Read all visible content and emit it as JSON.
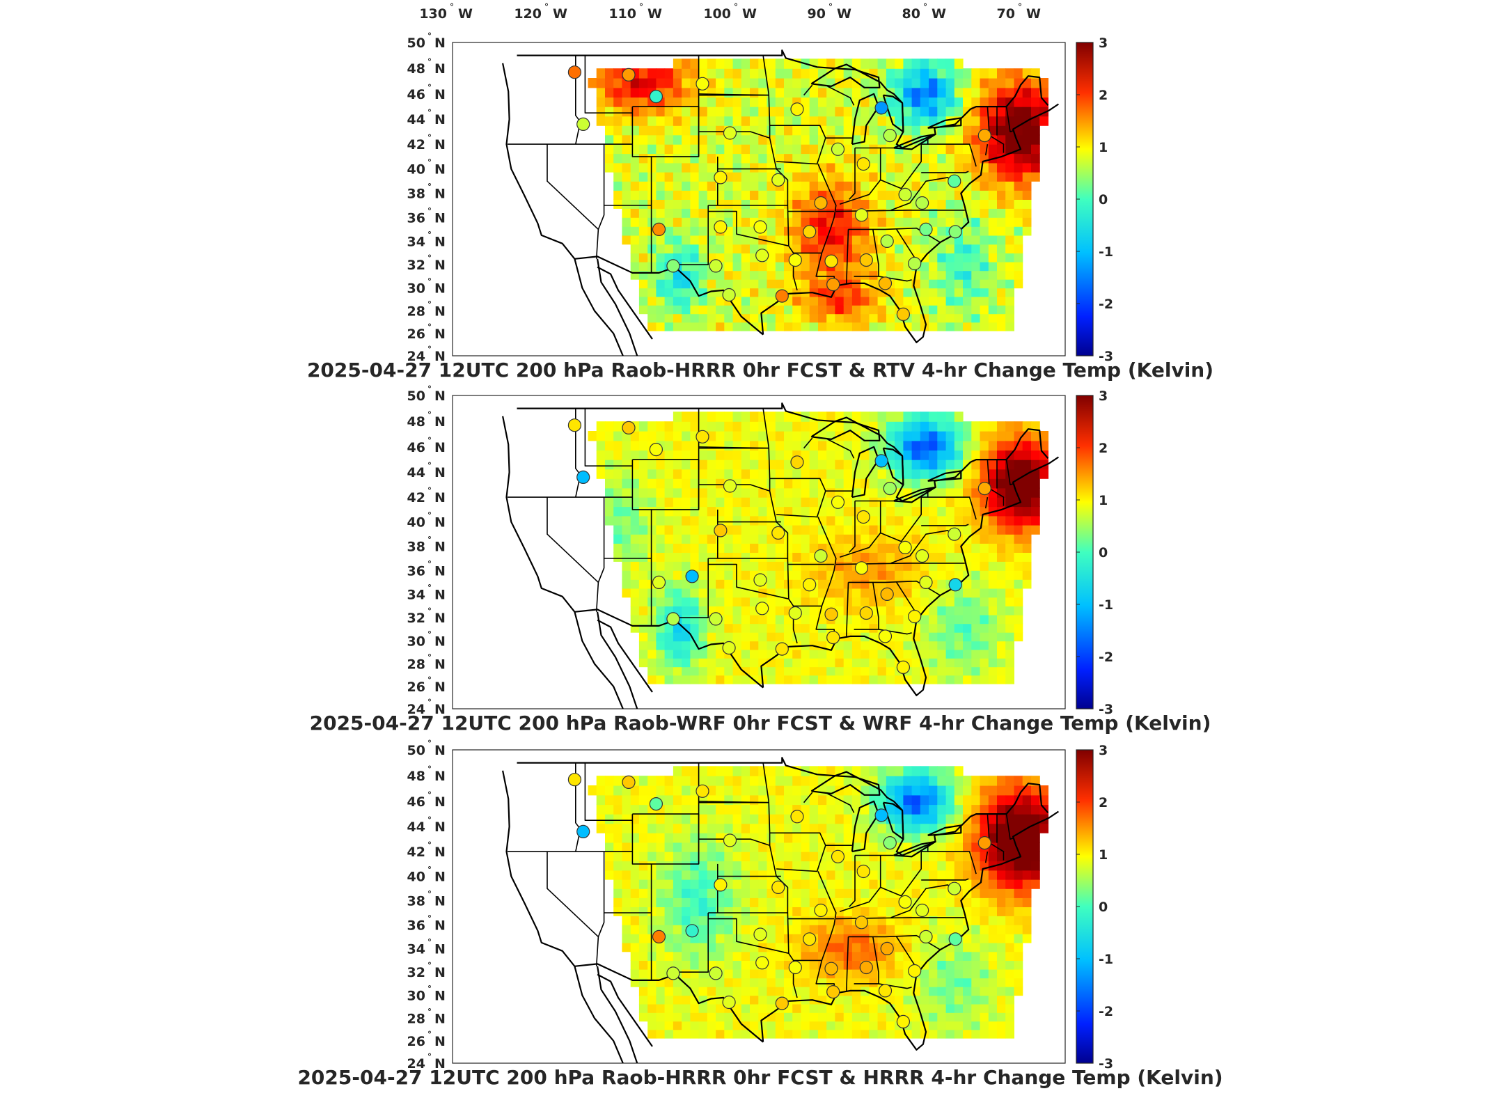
{
  "longitude_labels": [
    {
      "deg": "130",
      "hemi": "W"
    },
    {
      "deg": "120",
      "hemi": "W"
    },
    {
      "deg": "110",
      "hemi": "W"
    },
    {
      "deg": "100",
      "hemi": "W"
    },
    {
      "deg": "90",
      "hemi": "W"
    },
    {
      "deg": "80",
      "hemi": "W"
    },
    {
      "deg": "70",
      "hemi": "W"
    }
  ],
  "latitude_labels": [
    "50",
    "48",
    "46",
    "44",
    "42",
    "40",
    "38",
    "36",
    "34",
    "32",
    "30",
    "28",
    "26",
    "24"
  ],
  "latitude_hemi": "N",
  "degree_symbol": "°",
  "colorbar": {
    "ticks": [
      "3",
      "2",
      "1",
      "0",
      "-1",
      "-2",
      "-3"
    ],
    "range": [
      -3,
      3
    ],
    "colors": [
      "#00008f",
      "#0020ff",
      "#00c0ff",
      "#40ffbf",
      "#ffff00",
      "#ff8000",
      "#ff0000",
      "#800000"
    ]
  },
  "map_colors": {
    "land_boundary": "#000000",
    "frame": "#262626",
    "background": "#ffffff"
  },
  "panels": [
    {
      "title": "2025-04-27 12UTC 200 hPa Raob-HRRR 0hr FCST & RTV 4-hr Change Temp (Kelvin)",
      "field_pattern": "rtv",
      "stations": [
        {
          "lon": -117.1,
          "lat": 47.7,
          "value": 1.4
        },
        {
          "lon": -111.4,
          "lat": 47.5,
          "value": 1.1
        },
        {
          "lon": -103.6,
          "lat": 46.8,
          "value": 0.4
        },
        {
          "lon": -93.6,
          "lat": 44.8,
          "value": 0.5
        },
        {
          "lon": -84.7,
          "lat": 44.9,
          "value": -1.5
        },
        {
          "lon": -108.5,
          "lat": 45.8,
          "value": -0.6
        },
        {
          "lon": -116.2,
          "lat": 43.6,
          "value": 0.2
        },
        {
          "lon": -100.7,
          "lat": 42.9,
          "value": 0.3
        },
        {
          "lon": -89.3,
          "lat": 41.6,
          "value": 0.2
        },
        {
          "lon": -83.8,
          "lat": 42.7,
          "value": 0.1
        },
        {
          "lon": -73.8,
          "lat": 42.7,
          "value": 1.0
        },
        {
          "lon": -77.0,
          "lat": 39.0,
          "value": -0.3
        },
        {
          "lon": -86.6,
          "lat": 40.4,
          "value": 0.6
        },
        {
          "lon": -95.6,
          "lat": 39.1,
          "value": 0.3
        },
        {
          "lon": -101.7,
          "lat": 39.3,
          "value": 0.5
        },
        {
          "lon": -91.1,
          "lat": 37.2,
          "value": 0.9
        },
        {
          "lon": -82.2,
          "lat": 37.9,
          "value": 0.2
        },
        {
          "lon": -80.4,
          "lat": 37.2,
          "value": 0.1
        },
        {
          "lon": -108.2,
          "lat": 35.0,
          "value": 1.2
        },
        {
          "lon": -101.7,
          "lat": 35.2,
          "value": 0.5
        },
        {
          "lon": -97.5,
          "lat": 35.2,
          "value": 0.4
        },
        {
          "lon": -92.3,
          "lat": 34.8,
          "value": 0.7
        },
        {
          "lon": -86.8,
          "lat": 36.2,
          "value": 0.3
        },
        {
          "lon": -84.1,
          "lat": 34.0,
          "value": 0.1
        },
        {
          "lon": -80.0,
          "lat": 35.0,
          "value": -0.2
        },
        {
          "lon": -76.9,
          "lat": 34.8,
          "value": -0.1
        },
        {
          "lon": -106.7,
          "lat": 31.9,
          "value": -0.1
        },
        {
          "lon": -102.2,
          "lat": 31.9,
          "value": 0.2
        },
        {
          "lon": -97.3,
          "lat": 32.8,
          "value": 0.3
        },
        {
          "lon": -93.8,
          "lat": 32.4,
          "value": 0.4
        },
        {
          "lon": -90.0,
          "lat": 32.3,
          "value": 0.6
        },
        {
          "lon": -86.3,
          "lat": 32.4,
          "value": 0.8
        },
        {
          "lon": -81.2,
          "lat": 32.1,
          "value": 0.1
        },
        {
          "lon": -100.8,
          "lat": 29.4,
          "value": 0.2
        },
        {
          "lon": -95.2,
          "lat": 29.3,
          "value": 1.3
        },
        {
          "lon": -89.8,
          "lat": 30.3,
          "value": 1.1
        },
        {
          "lon": -84.3,
          "lat": 30.4,
          "value": 0.9
        },
        {
          "lon": -82.4,
          "lat": 27.7,
          "value": 0.8
        }
      ]
    },
    {
      "title": "2025-04-27 12UTC 200 hPa Raob-WRF 0hr FCST & WRF 4-hr Change Temp (Kelvin)",
      "field_pattern": "wrf",
      "stations": [
        {
          "lon": -117.1,
          "lat": 47.7,
          "value": 0.6
        },
        {
          "lon": -111.4,
          "lat": 47.5,
          "value": 0.8
        },
        {
          "lon": -103.6,
          "lat": 46.8,
          "value": 0.6
        },
        {
          "lon": -93.6,
          "lat": 44.8,
          "value": 0.7
        },
        {
          "lon": -84.7,
          "lat": 44.9,
          "value": -1.3
        },
        {
          "lon": -108.5,
          "lat": 45.8,
          "value": 0.4
        },
        {
          "lon": -116.2,
          "lat": 43.6,
          "value": -1.3
        },
        {
          "lon": -100.7,
          "lat": 42.9,
          "value": 0.3
        },
        {
          "lon": -89.3,
          "lat": 41.6,
          "value": 0.4
        },
        {
          "lon": -83.8,
          "lat": 42.7,
          "value": 0.0
        },
        {
          "lon": -73.8,
          "lat": 42.7,
          "value": 1.0
        },
        {
          "lon": -77.0,
          "lat": 39.0,
          "value": 0.2
        },
        {
          "lon": -86.6,
          "lat": 40.4,
          "value": 0.6
        },
        {
          "lon": -95.6,
          "lat": 39.1,
          "value": 0.6
        },
        {
          "lon": -101.7,
          "lat": 39.3,
          "value": 0.8
        },
        {
          "lon": -91.1,
          "lat": 37.2,
          "value": 0.2
        },
        {
          "lon": -82.2,
          "lat": 37.9,
          "value": 0.4
        },
        {
          "lon": -80.4,
          "lat": 37.2,
          "value": 0.3
        },
        {
          "lon": -108.2,
          "lat": 35.0,
          "value": 0.3
        },
        {
          "lon": -104.7,
          "lat": 35.5,
          "value": -1.3
        },
        {
          "lon": -97.5,
          "lat": 35.2,
          "value": 0.3
        },
        {
          "lon": -92.3,
          "lat": 34.8,
          "value": 0.5
        },
        {
          "lon": -86.8,
          "lat": 36.2,
          "value": 0.4
        },
        {
          "lon": -84.1,
          "lat": 34.0,
          "value": 0.9
        },
        {
          "lon": -80.0,
          "lat": 35.0,
          "value": 0.3
        },
        {
          "lon": -76.9,
          "lat": 34.8,
          "value": -1.0
        },
        {
          "lon": -106.7,
          "lat": 31.9,
          "value": 0.1
        },
        {
          "lon": -102.2,
          "lat": 31.9,
          "value": 0.2
        },
        {
          "lon": -97.3,
          "lat": 32.8,
          "value": 0.4
        },
        {
          "lon": -93.8,
          "lat": 32.4,
          "value": 0.3
        },
        {
          "lon": -90.0,
          "lat": 32.3,
          "value": 0.8
        },
        {
          "lon": -86.3,
          "lat": 32.4,
          "value": 0.7
        },
        {
          "lon": -81.2,
          "lat": 32.1,
          "value": 0.5
        },
        {
          "lon": -100.8,
          "lat": 29.4,
          "value": 0.3
        },
        {
          "lon": -95.2,
          "lat": 29.3,
          "value": 0.6
        },
        {
          "lon": -89.8,
          "lat": 30.3,
          "value": 0.6
        },
        {
          "lon": -84.3,
          "lat": 30.4,
          "value": 0.4
        },
        {
          "lon": -82.4,
          "lat": 27.7,
          "value": 0.5
        }
      ]
    },
    {
      "title": "2025-04-27 12UTC 200 hPa Raob-HRRR 0hr FCST & HRRR 4-hr Change Temp (Kelvin)",
      "field_pattern": "hrrr",
      "stations": [
        {
          "lon": -117.1,
          "lat": 47.7,
          "value": 0.6
        },
        {
          "lon": -111.4,
          "lat": 47.5,
          "value": 0.8
        },
        {
          "lon": -103.6,
          "lat": 46.8,
          "value": 0.6
        },
        {
          "lon": -93.6,
          "lat": 44.8,
          "value": 0.6
        },
        {
          "lon": -84.7,
          "lat": 44.9,
          "value": -1.3
        },
        {
          "lon": -108.5,
          "lat": 45.8,
          "value": -0.3
        },
        {
          "lon": -116.2,
          "lat": 43.6,
          "value": -1.3
        },
        {
          "lon": -100.7,
          "lat": 42.9,
          "value": 0.3
        },
        {
          "lon": -89.3,
          "lat": 41.6,
          "value": 0.6
        },
        {
          "lon": -83.8,
          "lat": 42.7,
          "value": -0.1
        },
        {
          "lon": -73.8,
          "lat": 42.7,
          "value": 1.1
        },
        {
          "lon": -77.0,
          "lat": 39.0,
          "value": 0.2
        },
        {
          "lon": -86.6,
          "lat": 40.4,
          "value": 0.6
        },
        {
          "lon": -95.6,
          "lat": 39.1,
          "value": 0.6
        },
        {
          "lon": -101.7,
          "lat": 39.3,
          "value": 0.5
        },
        {
          "lon": -91.1,
          "lat": 37.2,
          "value": 0.5
        },
        {
          "lon": -82.2,
          "lat": 37.9,
          "value": 0.4
        },
        {
          "lon": -80.4,
          "lat": 37.2,
          "value": 0.3
        },
        {
          "lon": -108.2,
          "lat": 35.0,
          "value": 1.3
        },
        {
          "lon": -104.7,
          "lat": 35.5,
          "value": -0.6
        },
        {
          "lon": -97.5,
          "lat": 35.2,
          "value": 0.3
        },
        {
          "lon": -92.3,
          "lat": 34.8,
          "value": 0.6
        },
        {
          "lon": -86.8,
          "lat": 36.2,
          "value": 0.8
        },
        {
          "lon": -84.1,
          "lat": 34.0,
          "value": 1.0
        },
        {
          "lon": -80.0,
          "lat": 35.0,
          "value": 0.2
        },
        {
          "lon": -76.9,
          "lat": 34.8,
          "value": -0.3
        },
        {
          "lon": -106.7,
          "lat": 31.9,
          "value": 0.2
        },
        {
          "lon": -102.2,
          "lat": 31.9,
          "value": 0.2
        },
        {
          "lon": -97.3,
          "lat": 32.8,
          "value": 0.4
        },
        {
          "lon": -93.8,
          "lat": 32.4,
          "value": 0.4
        },
        {
          "lon": -90.0,
          "lat": 32.3,
          "value": 0.9
        },
        {
          "lon": -86.3,
          "lat": 32.4,
          "value": 1.0
        },
        {
          "lon": -81.2,
          "lat": 32.1,
          "value": 0.5
        },
        {
          "lon": -100.8,
          "lat": 29.4,
          "value": 0.3
        },
        {
          "lon": -95.2,
          "lat": 29.3,
          "value": 0.8
        },
        {
          "lon": -89.8,
          "lat": 30.3,
          "value": 0.8
        },
        {
          "lon": -84.3,
          "lat": 30.4,
          "value": 0.6
        },
        {
          "lon": -82.4,
          "lat": 27.7,
          "value": 0.5
        }
      ]
    }
  ]
}
